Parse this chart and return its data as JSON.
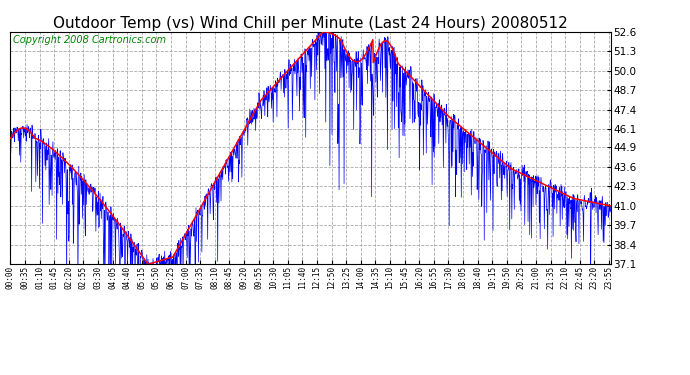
{
  "title": "Outdoor Temp (vs) Wind Chill per Minute (Last 24 Hours) 20080512",
  "copyright": "Copyright 2008 Cartronics.com",
  "yticks": [
    37.1,
    38.4,
    39.7,
    41.0,
    42.3,
    43.6,
    44.9,
    46.1,
    47.4,
    48.7,
    50.0,
    51.3,
    52.6
  ],
  "ymin": 37.1,
  "ymax": 52.6,
  "outdoor_color": "#ff0000",
  "windchill_color": "#0000ff",
  "background_color": "#ffffff",
  "grid_color": "#aaaaaa",
  "title_color": "#000000",
  "title_fontsize": 11,
  "copyright_fontsize": 7,
  "copyright_color": "#008800"
}
